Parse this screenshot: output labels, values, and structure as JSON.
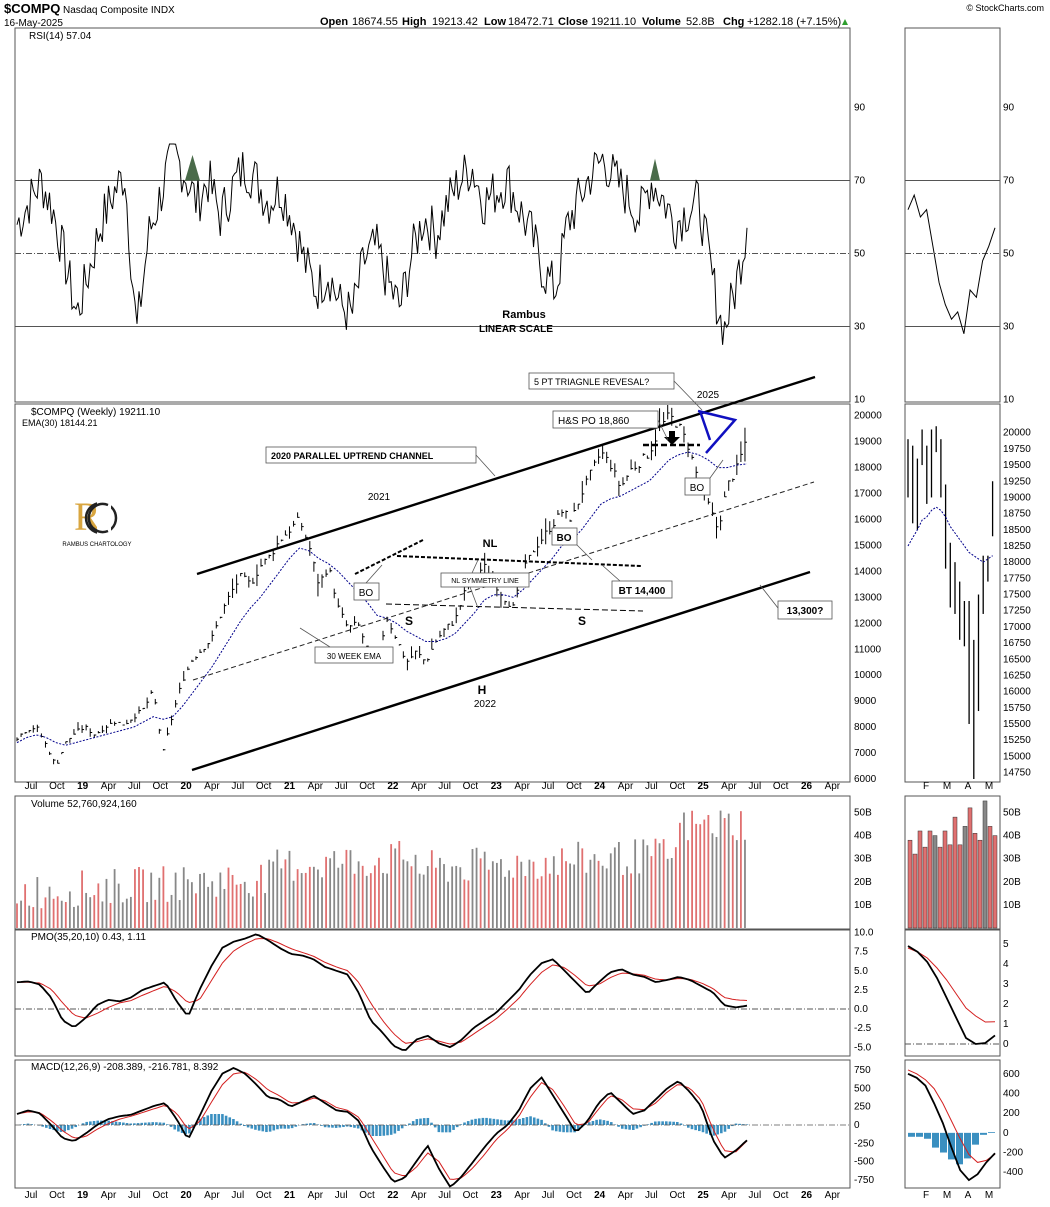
{
  "header": {
    "symbol": "$COMPQ",
    "name": "Nasdaq Composite INDX",
    "date": "16-May-2025",
    "open_label": "Open",
    "open": "18674.55",
    "high_label": "High",
    "high": "19213.42",
    "low_label": "Low",
    "low": "18472.71",
    "close_label": "Close",
    "close": "19211.10",
    "volume_label": "Volume",
    "volume": "52.8B",
    "chg_label": "Chg",
    "chg": "+1282.18 (+7.15%)",
    "credit": "© StockCharts.com"
  },
  "colors": {
    "up_volume": "#e07070",
    "down_volume": "#888888",
    "rsi_fill": "#4a6b4a",
    "ema": "#00008b",
    "signal": "#d42020",
    "histogram": "#3a8fc0",
    "annotation_blue": "#1010c0"
  },
  "annotations": {
    "rambus": "Rambus",
    "linear_scale": "LINEAR SCALE",
    "channel": "2020 PARALLEL UPTREND CHANNEL",
    "triangle": "5 PT TRIAGNLE REVESAL?",
    "year_2025": "2025",
    "hs_po": "H&S PO 18,860",
    "bo_top": "BO",
    "bo_mid": "BO",
    "bo_left": "BO",
    "bt": "BT 14,400",
    "nl": "NL",
    "nl_sym": "NL SYMMETRY LINE",
    "s_left": "S",
    "s_right": "S",
    "h": "H",
    "year_2022": "2022",
    "year_2021": "2021",
    "ema_label": "30 WEEK EMA",
    "target": "13,300?",
    "logo_sub": "RAMBUS CHARTOLOGY"
  },
  "chart_data": [
    {
      "type": "line",
      "title": "RSI(14) 57.04",
      "yticks": [
        "90",
        "70",
        "50",
        "30",
        "10"
      ],
      "ylim": [
        0,
        100
      ],
      "series": [
        {
          "name": "RSI(14)",
          "values": [
            58,
            64,
            70,
            62,
            48,
            33,
            45,
            58,
            66,
            72,
            28,
            55,
            66,
            78,
            72,
            64,
            70,
            60,
            68,
            74,
            70,
            64,
            68,
            60,
            48,
            40,
            45,
            36,
            33,
            48,
            52,
            42,
            35,
            50,
            60,
            55,
            64,
            70,
            74,
            64,
            67,
            70,
            62,
            55,
            45,
            40,
            58,
            65,
            72,
            76,
            70,
            66,
            60,
            70,
            65,
            58,
            62,
            64,
            45,
            28,
            40,
            57.04
          ]
        }
      ]
    },
    {
      "type": "bar",
      "title": "$COMPQ (Weekly) 19211.10",
      "subtitle": "EMA(30) 18144.21",
      "yticks": [
        "20000",
        "19000",
        "18000",
        "17000",
        "16000",
        "15000",
        "14000",
        "13000",
        "12000",
        "11000",
        "10000",
        "9000",
        "8000",
        "7000",
        "6000"
      ],
      "ylim": [
        6000,
        20300
      ],
      "xticks": [
        "Jul",
        "Oct",
        "19",
        "Apr",
        "Jul",
        "Oct",
        "20",
        "Apr",
        "Jul",
        "Oct",
        "21",
        "Apr",
        "Jul",
        "Oct",
        "22",
        "Apr",
        "Jul",
        "Oct",
        "23",
        "Apr",
        "Jul",
        "Oct",
        "24",
        "Apr",
        "Jul",
        "Oct",
        "25",
        "Apr",
        "Jul",
        "Oct",
        "26",
        "Apr"
      ],
      "series": [
        {
          "name": "$COMPQ",
          "values": [
            7600,
            7900,
            8000,
            7300,
            6500,
            7400,
            7800,
            8000,
            7700,
            8000,
            8200,
            8100,
            8400,
            8700,
            9400,
            7000,
            8500,
            9800,
            10600,
            11000,
            11400,
            12400,
            13200,
            13800,
            13500,
            14200,
            14600,
            15200,
            15600,
            16000,
            15000,
            13500,
            14200,
            12600,
            11800,
            12000,
            11000,
            10600,
            12200,
            11400,
            10500,
            10900,
            10500,
            11300,
            11800,
            12100,
            13200,
            13800,
            14200,
            13600,
            13000,
            12600,
            14000,
            14800,
            15300,
            15800,
            16300,
            16000,
            17000,
            17800,
            18600,
            18100,
            17200,
            17900,
            18200,
            18600,
            19500,
            20000,
            19600,
            18800,
            17500,
            16600,
            15600,
            17300,
            18000,
            19211
          ]
        },
        {
          "name": "EMA(30)",
          "values": [
            7400,
            7600,
            7700,
            7600,
            7400,
            7300,
            7400,
            7500,
            7600,
            7700,
            7800,
            7900,
            8000,
            8200,
            8400,
            8300,
            8400,
            8800,
            9300,
            9800,
            10300,
            10900,
            11500,
            12100,
            12600,
            13000,
            13500,
            14000,
            14500,
            14900,
            14800,
            14500,
            14300,
            14000,
            13600,
            13200,
            12800,
            12300,
            12200,
            12000,
            11700,
            11500,
            11300,
            11300,
            11400,
            11600,
            12000,
            12400,
            12900,
            13100,
            13100,
            13000,
            13300,
            13700,
            14100,
            14500,
            15000,
            15200,
            15600,
            16100,
            16600,
            16800,
            16900,
            17100,
            17300,
            17500,
            17900,
            18300,
            18500,
            18600,
            18500,
            18300,
            18000,
            18000,
            18100,
            18144.21
          ]
        }
      ]
    },
    {
      "type": "bar",
      "title": "Volume 52,760,924,160",
      "yticks": [
        "50B",
        "40B",
        "30B",
        "20B",
        "10B"
      ],
      "ylim": [
        0,
        55
      ]
    },
    {
      "type": "line",
      "title": "PMO(35,20,10) 0.43, 1.11",
      "yticks": [
        "10.0",
        "7.5",
        "5.0",
        "2.5",
        "0.0",
        "-2.5",
        "-5.0"
      ],
      "ylim": [
        -6,
        10
      ],
      "series": [
        {
          "name": "PMO",
          "values": [
            3.5,
            3.6,
            3.2,
            1.5,
            -1.5,
            -2.4,
            -1.2,
            0.5,
            1.2,
            1.0,
            1.5,
            2.5,
            3.0,
            3.5,
            1.0,
            -1.0,
            2.5,
            5.5,
            8.0,
            8.8,
            9.2,
            9.8,
            9.0,
            8.0,
            7.2,
            7.0,
            6.5,
            5.5,
            5.0,
            4.5,
            2.0,
            -1.5,
            -3.0,
            -4.8,
            -5.5,
            -4.0,
            -3.5,
            -4.5,
            -5.0,
            -4.0,
            -2.5,
            -1.5,
            -0.5,
            1.0,
            2.5,
            4.5,
            6.0,
            6.5,
            5.0,
            3.5,
            2.0,
            3.5,
            4.8,
            5.2,
            4.5,
            4.2,
            3.5,
            3.8,
            4.2,
            3.8,
            3.0,
            2.2,
            0.5,
            0.2,
            0.43
          ]
        },
        {
          "name": "Signal",
          "values": [
            3.5,
            3.5,
            3.4,
            2.6,
            0.8,
            -0.8,
            -1.2,
            -0.6,
            0.2,
            0.8,
            1.1,
            1.8,
            2.4,
            3.0,
            2.2,
            0.8,
            1.2,
            3.6,
            6.0,
            7.6,
            8.5,
            9.2,
            9.2,
            8.6,
            7.9,
            7.4,
            6.9,
            6.1,
            5.5,
            5.0,
            3.4,
            0.8,
            -1.4,
            -3.2,
            -4.5,
            -4.3,
            -3.9,
            -4.2,
            -4.6,
            -4.3,
            -3.3,
            -2.3,
            -1.3,
            0.0,
            1.4,
            3.2,
            4.8,
            5.8,
            5.4,
            4.3,
            3.0,
            3.2,
            4.1,
            4.7,
            4.6,
            4.4,
            3.9,
            3.8,
            4.0,
            3.9,
            3.4,
            2.7,
            1.5,
            1.2,
            1.11
          ]
        }
      ]
    },
    {
      "type": "line",
      "title": "MACD(12,26,9) -208.389, -216.781, 8.392",
      "yticks": [
        "750",
        "500",
        "250",
        "0",
        "-250",
        "-500",
        "-750"
      ],
      "ylim": [
        -900,
        850
      ],
      "series": [
        {
          "name": "MACD",
          "values": [
            150,
            200,
            160,
            0,
            -180,
            -220,
            -120,
            0,
            80,
            120,
            140,
            200,
            260,
            300,
            80,
            -200,
            120,
            450,
            700,
            780,
            700,
            550,
            380,
            350,
            250,
            320,
            400,
            300,
            200,
            180,
            50,
            -300,
            -550,
            -780,
            -720,
            -500,
            -280,
            -600,
            -850,
            -700,
            -500,
            -300,
            -120,
            0,
            200,
            500,
            650,
            400,
            150,
            -100,
            50,
            300,
            450,
            300,
            150,
            200,
            350,
            500,
            600,
            450,
            250,
            -200,
            -450,
            -350,
            -208.389
          ]
        },
        {
          "name": "Signal",
          "values": [
            150,
            180,
            170,
            60,
            -80,
            -180,
            -160,
            -60,
            20,
            80,
            120,
            170,
            220,
            270,
            160,
            -60,
            40,
            300,
            550,
            700,
            720,
            620,
            480,
            400,
            300,
            310,
            370,
            330,
            240,
            200,
            100,
            -150,
            -400,
            -650,
            -700,
            -580,
            -380,
            -500,
            -750,
            -720,
            -580,
            -400,
            -200,
            -60,
            120,
            380,
            580,
            480,
            250,
            0,
            20,
            220,
            400,
            350,
            220,
            210,
            300,
            450,
            560,
            500,
            340,
            -50,
            -350,
            -370,
            -216.781
          ]
        },
        {
          "name": "Histogram",
          "values": [
            0,
            20,
            -10,
            -60,
            -100,
            -40,
            40,
            60,
            60,
            40,
            20,
            30,
            40,
            30,
            -80,
            -140,
            80,
            150,
            150,
            80,
            -20,
            -70,
            -100,
            -50,
            -50,
            10,
            30,
            -30,
            -40,
            -20,
            -50,
            -150,
            -150,
            -130,
            -20,
            80,
            100,
            -100,
            -100,
            20,
            80,
            100,
            80,
            60,
            80,
            120,
            70,
            -80,
            -100,
            -100,
            30,
            80,
            50,
            -50,
            -70,
            -10,
            50,
            50,
            40,
            -50,
            -90,
            -150,
            -100,
            20,
            8.392
          ]
        }
      ]
    }
  ],
  "zoom": {
    "xticks": [
      "F",
      "M",
      "A",
      "M"
    ],
    "price_yticks": [
      "20000",
      "19750",
      "19500",
      "19250",
      "19000",
      "18750",
      "18500",
      "18250",
      "18000",
      "17750",
      "17500",
      "17250",
      "17000",
      "16750",
      "16500",
      "16250",
      "16000",
      "15750",
      "15500",
      "15250",
      "15000",
      "14750"
    ],
    "price_ylim": [
      14650,
      20150
    ],
    "rsi_yticks": [
      "90",
      "70",
      "50",
      "30",
      "10"
    ],
    "vol_yticks": [
      "50B",
      "40B",
      "30B",
      "20B",
      "10B"
    ],
    "pmo_yticks": [
      "5",
      "4",
      "3",
      "2",
      "1",
      "0"
    ],
    "pmo_ylim": [
      -0.4,
      5.5
    ],
    "macd_yticks": [
      "600",
      "400",
      "200",
      "0",
      "-200",
      "-400"
    ],
    "macd_ylim": [
      -520,
      700
    ],
    "price_bars": [
      [
        19000,
        19900
      ],
      [
        18600,
        19800
      ],
      [
        18500,
        19600
      ],
      [
        19500,
        20050
      ],
      [
        18900,
        19800
      ],
      [
        19000,
        20050
      ],
      [
        19700,
        20100
      ],
      [
        19000,
        19900
      ],
      [
        17900,
        19200
      ],
      [
        17300,
        18300
      ],
      [
        17200,
        18000
      ],
      [
        16800,
        17700
      ],
      [
        16700,
        17400
      ],
      [
        15500,
        17400
      ],
      [
        14650,
        16800
      ],
      [
        15700,
        17500
      ],
      [
        17200,
        18100
      ],
      [
        17700,
        18100
      ],
      [
        18400,
        19250
      ]
    ],
    "ema": [
      18250,
      18380,
      18500,
      18650,
      18700,
      18800,
      18850,
      18800,
      18700,
      18550,
      18450,
      18350,
      18250,
      18150,
      18100,
      18050,
      18000,
      18050,
      18100
    ],
    "rsi": [
      62,
      66,
      60,
      62,
      52,
      42,
      36,
      32,
      34,
      28,
      40,
      38,
      48,
      52,
      57.04
    ],
    "volume_up": [
      false,
      false,
      false,
      false,
      false,
      true,
      false,
      false,
      false,
      false,
      false,
      true,
      false,
      false,
      false,
      true,
      false,
      false
    ],
    "volume_values": [
      38,
      32,
      42,
      35,
      42,
      40,
      35,
      42,
      36,
      48,
      36,
      44,
      52,
      41,
      38,
      55,
      44,
      40
    ],
    "pmo": [
      4.9,
      4.6,
      4.1,
      3.3,
      2.3,
      1.3,
      0.3,
      0.0,
      0.05,
      0.43
    ],
    "pmo_signal": [
      4.8,
      4.6,
      4.3,
      3.8,
      3.2,
      2.5,
      1.8,
      1.4,
      1.1,
      1.11
    ],
    "macd": [
      600,
      560,
      480,
      300,
      100,
      -150,
      -380,
      -480,
      -420,
      -300,
      -208
    ],
    "macd_signal": [
      640,
      600,
      540,
      450,
      300,
      120,
      -60,
      -220,
      -300,
      -280,
      -217
    ],
    "macd_hist": [
      -40,
      -40,
      -60,
      -150,
      -200,
      -270,
      -320,
      -260,
      -120,
      -20,
      8
    ]
  }
}
